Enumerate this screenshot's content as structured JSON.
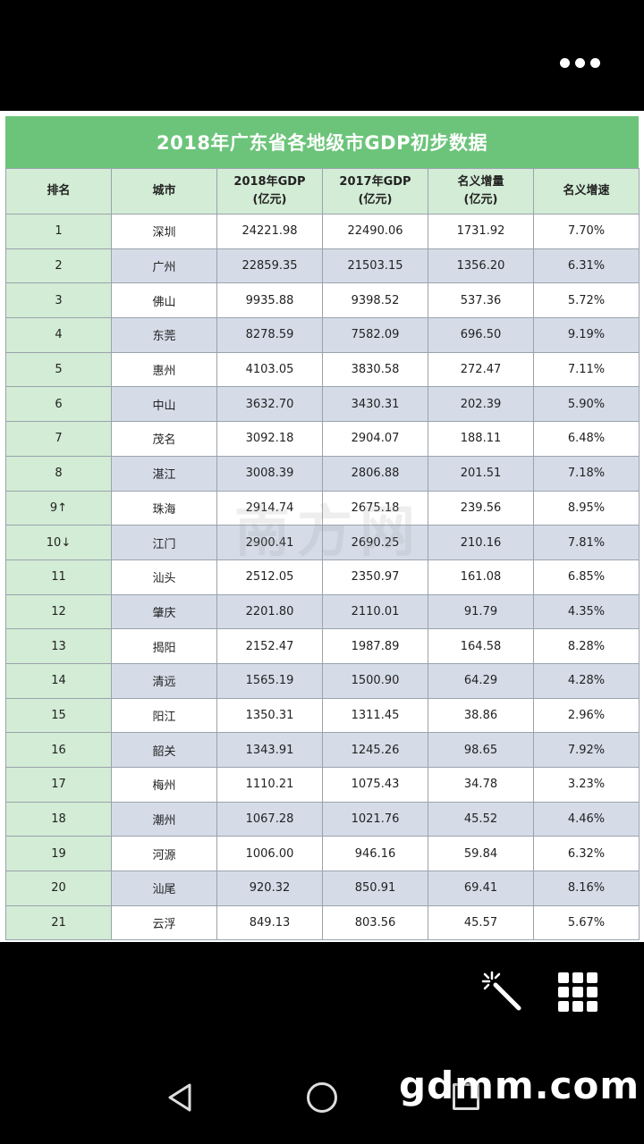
{
  "table": {
    "title": "2018年广东省各地级市GDP初步数据",
    "headers": {
      "rank": "排名",
      "city": "城市",
      "gdp2018_line1": "2018年GDP",
      "gdp2018_line2": "(亿元)",
      "gdp2017_line1": "2017年GDP",
      "gdp2017_line2": "(亿元)",
      "increase_line1": "名义增量",
      "increase_line2": "(亿元)",
      "growth": "名义增速"
    },
    "rows": [
      {
        "rank": "1",
        "city": "深圳",
        "gdp2018": "24221.98",
        "gdp2017": "22490.06",
        "increase": "1731.92",
        "growth": "7.70%"
      },
      {
        "rank": "2",
        "city": "广州",
        "gdp2018": "22859.35",
        "gdp2017": "21503.15",
        "increase": "1356.20",
        "growth": "6.31%"
      },
      {
        "rank": "3",
        "city": "佛山",
        "gdp2018": "9935.88",
        "gdp2017": "9398.52",
        "increase": "537.36",
        "growth": "5.72%"
      },
      {
        "rank": "4",
        "city": "东莞",
        "gdp2018": "8278.59",
        "gdp2017": "7582.09",
        "increase": "696.50",
        "growth": "9.19%"
      },
      {
        "rank": "5",
        "city": "惠州",
        "gdp2018": "4103.05",
        "gdp2017": "3830.58",
        "increase": "272.47",
        "growth": "7.11%"
      },
      {
        "rank": "6",
        "city": "中山",
        "gdp2018": "3632.70",
        "gdp2017": "3430.31",
        "increase": "202.39",
        "growth": "5.90%"
      },
      {
        "rank": "7",
        "city": "茂名",
        "gdp2018": "3092.18",
        "gdp2017": "2904.07",
        "increase": "188.11",
        "growth": "6.48%"
      },
      {
        "rank": "8",
        "city": "湛江",
        "gdp2018": "3008.39",
        "gdp2017": "2806.88",
        "increase": "201.51",
        "growth": "7.18%"
      },
      {
        "rank": "9↑",
        "city": "珠海",
        "gdp2018": "2914.74",
        "gdp2017": "2675.18",
        "increase": "239.56",
        "growth": "8.95%"
      },
      {
        "rank": "10↓",
        "city": "江门",
        "gdp2018": "2900.41",
        "gdp2017": "2690.25",
        "increase": "210.16",
        "growth": "7.81%"
      },
      {
        "rank": "11",
        "city": "汕头",
        "gdp2018": "2512.05",
        "gdp2017": "2350.97",
        "increase": "161.08",
        "growth": "6.85%"
      },
      {
        "rank": "12",
        "city": "肇庆",
        "gdp2018": "2201.80",
        "gdp2017": "2110.01",
        "increase": "91.79",
        "growth": "4.35%"
      },
      {
        "rank": "13",
        "city": "揭阳",
        "gdp2018": "2152.47",
        "gdp2017": "1987.89",
        "increase": "164.58",
        "growth": "8.28%"
      },
      {
        "rank": "14",
        "city": "清远",
        "gdp2018": "1565.19",
        "gdp2017": "1500.90",
        "increase": "64.29",
        "growth": "4.28%"
      },
      {
        "rank": "15",
        "city": "阳江",
        "gdp2018": "1350.31",
        "gdp2017": "1311.45",
        "increase": "38.86",
        "growth": "2.96%"
      },
      {
        "rank": "16",
        "city": "韶关",
        "gdp2018": "1343.91",
        "gdp2017": "1245.26",
        "increase": "98.65",
        "growth": "7.92%"
      },
      {
        "rank": "17",
        "city": "梅州",
        "gdp2018": "1110.21",
        "gdp2017": "1075.43",
        "increase": "34.78",
        "growth": "3.23%"
      },
      {
        "rank": "18",
        "city": "潮州",
        "gdp2018": "1067.28",
        "gdp2017": "1021.76",
        "increase": "45.52",
        "growth": "4.46%"
      },
      {
        "rank": "19",
        "city": "河源",
        "gdp2018": "1006.00",
        "gdp2017": "946.16",
        "increase": "59.84",
        "growth": "6.32%"
      },
      {
        "rank": "20",
        "city": "汕尾",
        "gdp2018": "920.32",
        "gdp2017": "850.91",
        "increase": "69.41",
        "growth": "8.16%"
      },
      {
        "rank": "21",
        "city": "云浮",
        "gdp2018": "849.13",
        "gdp2017": "803.56",
        "increase": "45.57",
        "growth": "5.67%"
      }
    ],
    "watermark": "南方网"
  },
  "toolbar": {
    "more_icon": "more-dots-icon",
    "magic_icon": "magic-wand-icon",
    "grid_icon": "grid-menu-icon"
  },
  "navbar": {
    "back_icon": "back-triangle-icon",
    "home_icon": "home-circle-icon",
    "recent_icon": "recent-square-icon"
  },
  "brand_watermark": "gdmm.com",
  "colors": {
    "title_band": "#6cc47a",
    "header_bg": "#d3ecd5",
    "row_alt": "#d5dce8"
  }
}
